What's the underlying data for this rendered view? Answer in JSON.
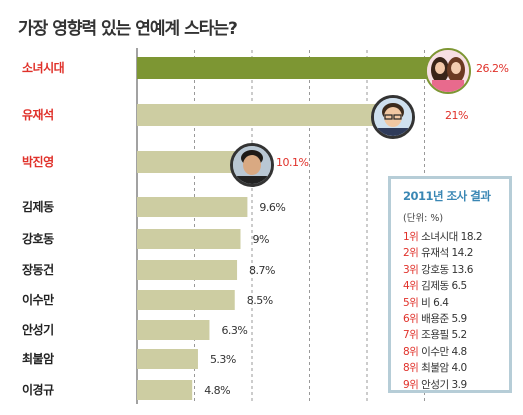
{
  "title": "가장 영향력 있는 연예계 스타는?",
  "colors": {
    "bar_top": "#7d9633",
    "bar_default": "#cdcda2",
    "label_highlight": "#e0312a",
    "label_default": "#222222",
    "value_default": "#333333",
    "legend_border": "#b6cdd7",
    "legend_title": "#3a87b4"
  },
  "chart_data": {
    "type": "bar",
    "orientation": "horizontal",
    "categories": [
      "소녀시대",
      "유재석",
      "박진영",
      "김제동",
      "강호동",
      "장동건",
      "이수만",
      "안성기",
      "최불암",
      "이경규"
    ],
    "values": [
      26.2,
      21,
      10.1,
      9.6,
      9,
      8.7,
      8.5,
      6.3,
      5.3,
      4.8
    ],
    "value_labels": [
      "26.2%",
      "21%",
      "10.1%",
      "9.6%",
      "9%",
      "8.7%",
      "8.5%",
      "6.3%",
      "5.3%",
      "4.8%"
    ],
    "highlighted": [
      true,
      true,
      true,
      false,
      false,
      false,
      false,
      false,
      false,
      false
    ],
    "grid": "vertical-dashed",
    "legend": "bottom-right"
  },
  "legend_box": {
    "title": "2011년 조사 결과",
    "unit": "(단위: %)",
    "rows": [
      {
        "rank": "1위",
        "text": "소녀시대 18.2"
      },
      {
        "rank": "2위",
        "text": "유재석 14.2"
      },
      {
        "rank": "3위",
        "text": "강호동 13.6"
      },
      {
        "rank": "4위",
        "text": "김제동 6.5"
      },
      {
        "rank": "5위",
        "text": "비 6.4"
      },
      {
        "rank": "6위",
        "text": "배용준 5.9"
      },
      {
        "rank": "7위",
        "text": "조용필 5.2"
      },
      {
        "rank": "8위",
        "text": "이수만 4.8"
      },
      {
        "rank": "8위",
        "text": "최불암 4.0"
      },
      {
        "rank": "9위",
        "text": "안성기 3.9"
      }
    ]
  }
}
